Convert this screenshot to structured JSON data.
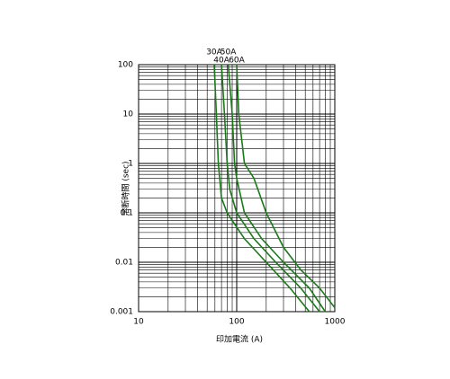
{
  "chart_data": {
    "type": "line",
    "x_label": "印加電流 (A)",
    "y_label": "溶断時間 (sec)",
    "xscale": "log",
    "yscale": "log",
    "xlim": [
      10,
      1000
    ],
    "ylim": [
      0.001,
      100
    ],
    "xticks": [
      10,
      100,
      1000
    ],
    "yticks": [
      0.001,
      0.01,
      0.1,
      1,
      10,
      100
    ],
    "grid": true,
    "minor_grid": true,
    "series": [
      {
        "name": "30A",
        "color": "#1a7a1a",
        "x": [
          59,
          62,
          65,
          70,
          80,
          120,
          200,
          350,
          550
        ],
        "values": [
          100,
          10,
          1,
          0.2,
          0.1,
          0.03,
          0.01,
          0.003,
          0.001
        ]
      },
      {
        "name": "40A",
        "color": "#1a7a1a",
        "x": [
          70,
          75,
          80,
          85,
          100,
          150,
          250,
          450,
          700
        ],
        "values": [
          100,
          10,
          1,
          0.3,
          0.1,
          0.03,
          0.01,
          0.003,
          0.001
        ]
      },
      {
        "name": "50A",
        "color": "#1a7a1a",
        "x": [
          82,
          90,
          95,
          100,
          120,
          180,
          300,
          550,
          800
        ],
        "values": [
          100,
          10,
          1,
          0.5,
          0.1,
          0.03,
          0.01,
          0.003,
          0.001
        ]
      },
      {
        "name": "60A",
        "color": "#1a7a1a",
        "x": [
          100,
          105,
          120,
          150,
          200,
          300,
          450,
          700,
          1000
        ],
        "values": [
          100,
          10,
          1,
          0.5,
          0.1,
          0.02,
          0.007,
          0.003,
          0.0012
        ]
      }
    ]
  }
}
